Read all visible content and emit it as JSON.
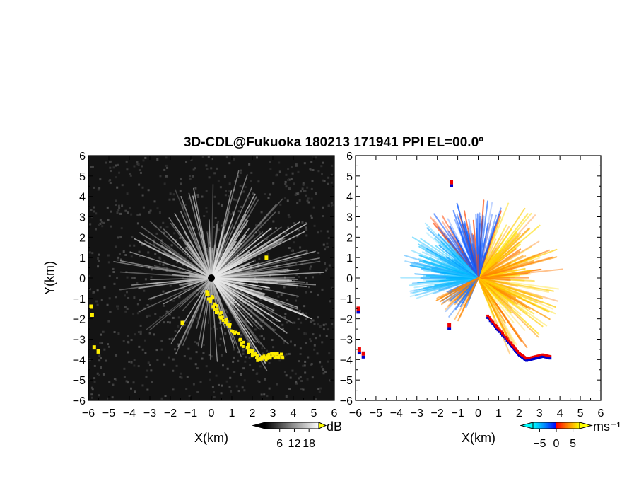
{
  "chart_data": [
    {
      "type": "heatmap",
      "title": "3D-CDL@Fukuoka 180213 171941 PPI EL=00.0º",
      "xlabel": "X(km)",
      "ylabel": "Y(km)",
      "xlim": [
        -6,
        6
      ],
      "ylim": [
        -6,
        6
      ],
      "x_ticks": [
        "−6",
        "−5",
        "−4",
        "−3",
        "−2",
        "−1",
        "0",
        "1",
        "2",
        "3",
        "4",
        "5",
        "6"
      ],
      "y_ticks": [
        "−6",
        "−5",
        "−4",
        "−3",
        "−2",
        "−1",
        "0",
        "1",
        "2",
        "3",
        "4",
        "5",
        "6"
      ],
      "grid": false,
      "quantity": "signal-to-noise ratio",
      "colorbar": {
        "unit": "dB",
        "ticks": [
          "6",
          "12",
          "18"
        ],
        "tick_values": [
          6,
          12,
          18
        ],
        "range": [
          0,
          22
        ],
        "colors": [
          "#000000",
          "#444444",
          "#888888",
          "#cccccc",
          "#ffffff"
        ],
        "extend": "both",
        "overflow_color": "#ffff00"
      },
      "colors": {
        "background": "#141414",
        "echo": "#ffffff",
        "highlight": "#ffee00"
      }
    },
    {
      "type": "heatmap",
      "xlabel": "X(km)",
      "xlim": [
        -6,
        6
      ],
      "ylim": [
        -6,
        6
      ],
      "x_ticks": [
        "−6",
        "−5",
        "−4",
        "−3",
        "−2",
        "−1",
        "0",
        "1",
        "2",
        "3",
        "4",
        "5",
        "6"
      ],
      "y_ticks": [
        "−6",
        "−5",
        "−4",
        "−3",
        "−2",
        "−1",
        "0",
        "1",
        "2",
        "3",
        "4",
        "5",
        "6"
      ],
      "grid": false,
      "quantity": "radial velocity",
      "colorbar": {
        "unit": "ms⁻¹",
        "ticks": [
          "−5",
          "0",
          "5"
        ],
        "tick_values": [
          -5,
          0,
          5
        ],
        "range": [
          -7,
          7
        ],
        "colors": [
          "#00ffff",
          "#0088ff",
          "#0000ff",
          "#ff0000",
          "#ff8800",
          "#ffff00"
        ],
        "extend": "both"
      },
      "colors": {
        "background": "#ffffff",
        "negative": "#1e88ff",
        "positive": "#ffaa00",
        "edge_low": "#0000cc",
        "edge_high": "#ff0000"
      }
    }
  ]
}
